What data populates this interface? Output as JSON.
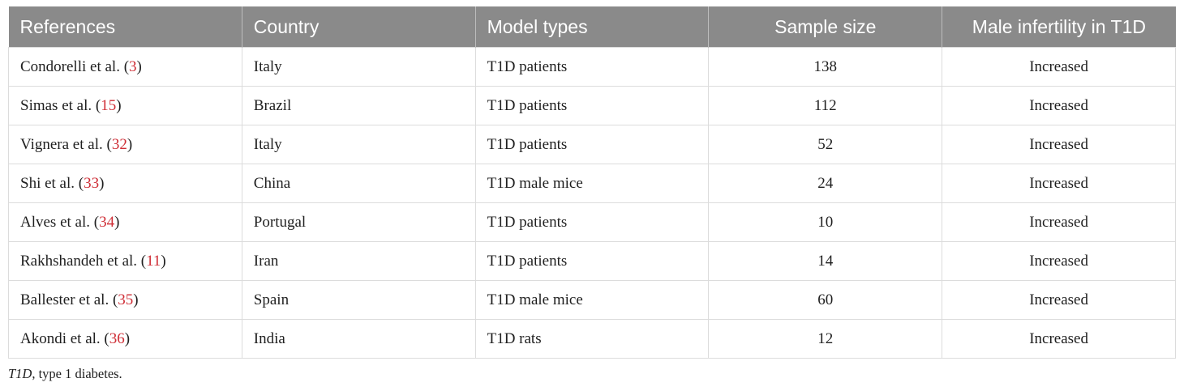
{
  "colors": {
    "header_bg": "#8a8a8a",
    "header_text": "#ffffff",
    "header_divider": "#bdbdbd",
    "citation_red": "#cf2e36",
    "border": "#dcdcdc",
    "body_text": "#1f1f1f"
  },
  "table": {
    "headers": [
      "References",
      "Country",
      "Model types",
      "Sample size",
      "Male infertility in T1D"
    ],
    "rows": [
      {
        "ref_pre": "Condorelli et al. (",
        "ref_num": "3",
        "ref_post": ")",
        "country": "Italy",
        "model_type": "T1D patients",
        "sample_size": "138",
        "infertility": "Increased"
      },
      {
        "ref_pre": "Simas et al. (",
        "ref_num": "15",
        "ref_post": ")",
        "country": "Brazil",
        "model_type": "T1D patients",
        "sample_size": "112",
        "infertility": "Increased"
      },
      {
        "ref_pre": "Vignera et al. (",
        "ref_num": "32",
        "ref_post": ")",
        "country": "Italy",
        "model_type": "T1D patients",
        "sample_size": "52",
        "infertility": "Increased"
      },
      {
        "ref_pre": "Shi et al. (",
        "ref_num": "33",
        "ref_post": ")",
        "country": "China",
        "model_type": "T1D male mice",
        "sample_size": "24",
        "infertility": "Increased"
      },
      {
        "ref_pre": "Alves et al. (",
        "ref_num": "34",
        "ref_post": ")",
        "country": "Portugal",
        "model_type": "T1D patients",
        "sample_size": "10",
        "infertility": "Increased"
      },
      {
        "ref_pre": "Rakhshandeh et al. (",
        "ref_num": "11",
        "ref_post": ")",
        "country": "Iran",
        "model_type": "T1D patients",
        "sample_size": "14",
        "infertility": "Increased"
      },
      {
        "ref_pre": "Ballester et al. (",
        "ref_num": "35",
        "ref_post": ")",
        "country": "Spain",
        "model_type": "T1D male mice",
        "sample_size": "60",
        "infertility": "Increased"
      },
      {
        "ref_pre": "Akondi et al. (",
        "ref_num": "36",
        "ref_post": ")",
        "country": "India",
        "model_type": "T1D rats",
        "sample_size": "12",
        "infertility": "Increased"
      }
    ]
  },
  "footnote": {
    "abbr": "T1D",
    "rest": ", type 1 diabetes."
  }
}
